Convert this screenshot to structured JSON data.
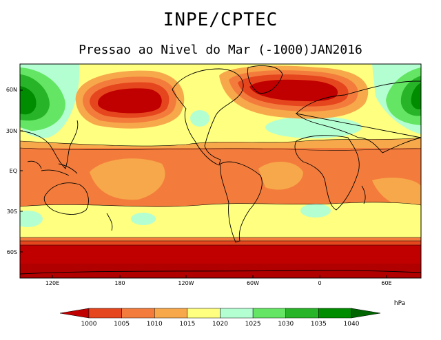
{
  "header": {
    "org": "INPE/CPTEC",
    "subtitle": "Pressao ao Nivel do Mar (-1000)JAN2016"
  },
  "map": {
    "lat_ticks": [
      "60N",
      "30N",
      "EQ",
      "30S",
      "60S"
    ],
    "lon_ticks": [
      "120E",
      "180",
      "120W",
      "60W",
      "0",
      "60E"
    ]
  },
  "colorbar": {
    "unit": "hPa",
    "levels": [
      "1000",
      "1005",
      "1010",
      "1015",
      "1020",
      "1025",
      "1030",
      "1035",
      "1040"
    ],
    "colors": [
      "#c00000",
      "#e6461e",
      "#f37c3c",
      "#f7a84a",
      "#ffff80",
      "#b4ffd2",
      "#64e664",
      "#28b428",
      "#008c00",
      "#006400"
    ]
  }
}
